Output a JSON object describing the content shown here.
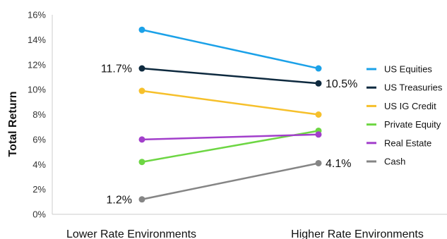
{
  "chart_data": {
    "type": "line",
    "ylabel": "Total Return",
    "xlabel": "",
    "categories": [
      "Lower Rate Environments",
      "Higher Rate Environments"
    ],
    "ylim": [
      0,
      16
    ],
    "yticks": [
      "0%",
      "2%",
      "4%",
      "6%",
      "8%",
      "10%",
      "12%",
      "14%",
      "16%"
    ],
    "grid": false,
    "legend_position": "right",
    "series": [
      {
        "name": "US Equities",
        "color": "#1ba1e8",
        "values": [
          14.8,
          11.7
        ]
      },
      {
        "name": "US Treasuries",
        "color": "#0e2a3f",
        "values": [
          11.7,
          10.5
        ]
      },
      {
        "name": "US IG Credit",
        "color": "#f6c02b",
        "values": [
          9.9,
          8.0
        ]
      },
      {
        "name": "Private Equity",
        "color": "#6dd643",
        "values": [
          4.2,
          6.7
        ]
      },
      {
        "name": "Real Estate",
        "color": "#a23fcb",
        "values": [
          6.0,
          6.4
        ]
      },
      {
        "name": "Cash",
        "color": "#858585",
        "values": [
          1.2,
          4.1
        ]
      }
    ],
    "annotations": [
      {
        "series": "US Treasuries",
        "point": 0,
        "text": "11.7%",
        "side": "left"
      },
      {
        "series": "US Treasuries",
        "point": 1,
        "text": "10.5%",
        "side": "right"
      },
      {
        "series": "Cash",
        "point": 0,
        "text": "1.2%",
        "side": "left"
      },
      {
        "series": "Cash",
        "point": 1,
        "text": "4.1%",
        "side": "right"
      }
    ]
  }
}
